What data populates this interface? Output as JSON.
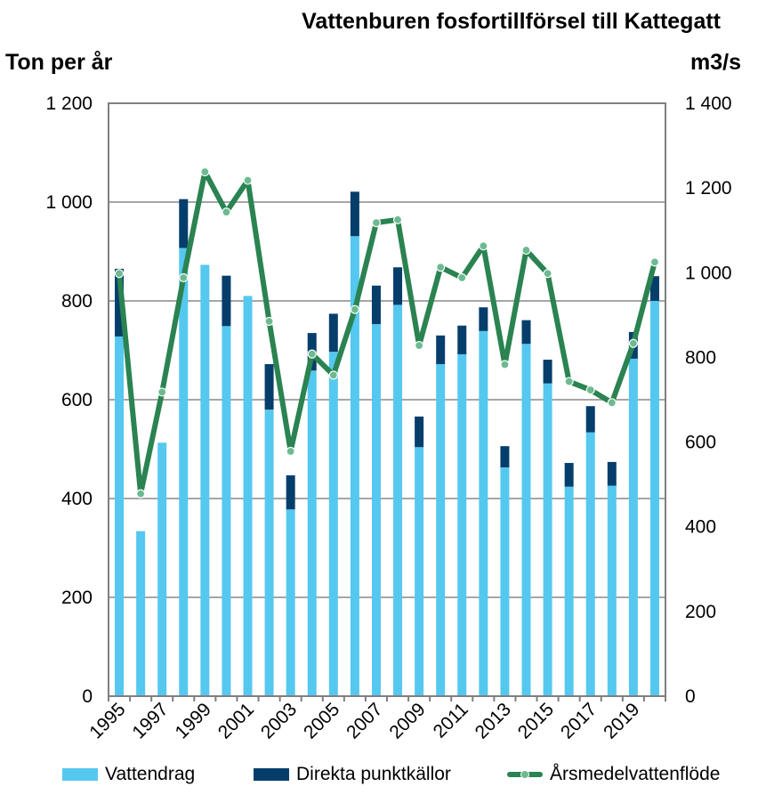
{
  "chart_data": {
    "type": "bar",
    "title": "Vattenburen fosfortillförsel till Kattegatt",
    "ylabel": "Ton per år",
    "ylabel_right": "m3/s",
    "ylim": [
      0,
      1200
    ],
    "ylim_right": [
      0,
      1400
    ],
    "yticks": [
      "0",
      "200",
      "400",
      "600",
      "800",
      "1 000",
      "1 200"
    ],
    "yticks_right": [
      "0",
      "200",
      "400",
      "600",
      "800",
      "1 000",
      "1 200",
      "1 400"
    ],
    "grid": true,
    "legend_position": "bottom",
    "stacked": true,
    "categories": [
      "1995",
      "1996",
      "1997",
      "1998",
      "1999",
      "2000",
      "2001",
      "2002",
      "2003",
      "2004",
      "2005",
      "2006",
      "2007",
      "2008",
      "2009",
      "2010",
      "2011",
      "2012",
      "2013",
      "2014",
      "2015",
      "2016",
      "2017",
      "2018",
      "2019",
      "2020"
    ],
    "xtick_labels": [
      "1995",
      "",
      "1997",
      "",
      "1999",
      "",
      "2001",
      "",
      "2003",
      "",
      "2005",
      "",
      "2007",
      "",
      "2009",
      "",
      "2011",
      "",
      "2013",
      "",
      "2015",
      "",
      "2017",
      "",
      "2019",
      ""
    ],
    "series": [
      {
        "name": "Vattendrag",
        "type": "bar",
        "axis": "left",
        "color": "#55c8f0",
        "values": [
          728,
          334,
          513,
          907,
          873,
          749,
          810,
          580,
          378,
          659,
          697,
          931,
          753,
          792,
          504,
          672,
          692,
          739,
          463,
          713,
          633,
          424,
          534,
          426,
          683,
          800
        ]
      },
      {
        "name": "Direkta punktkällor",
        "type": "bar",
        "axis": "left",
        "color": "#063e6b",
        "values": [
          137,
          0,
          0,
          99,
          0,
          102,
          0,
          92,
          69,
          76,
          77,
          90,
          78,
          76,
          62,
          58,
          58,
          48,
          43,
          48,
          48,
          48,
          53,
          48,
          54,
          50
        ]
      },
      {
        "name": "Årsmedelvattenflöde",
        "type": "line",
        "axis": "right",
        "color": "#2a8351",
        "values": [
          998,
          478,
          718,
          988,
          1238,
          1143,
          1218,
          885,
          578,
          808,
          758,
          913,
          1118,
          1125,
          828,
          1013,
          988,
          1063,
          783,
          1053,
          998,
          743,
          723,
          693,
          833,
          1025
        ]
      }
    ]
  }
}
